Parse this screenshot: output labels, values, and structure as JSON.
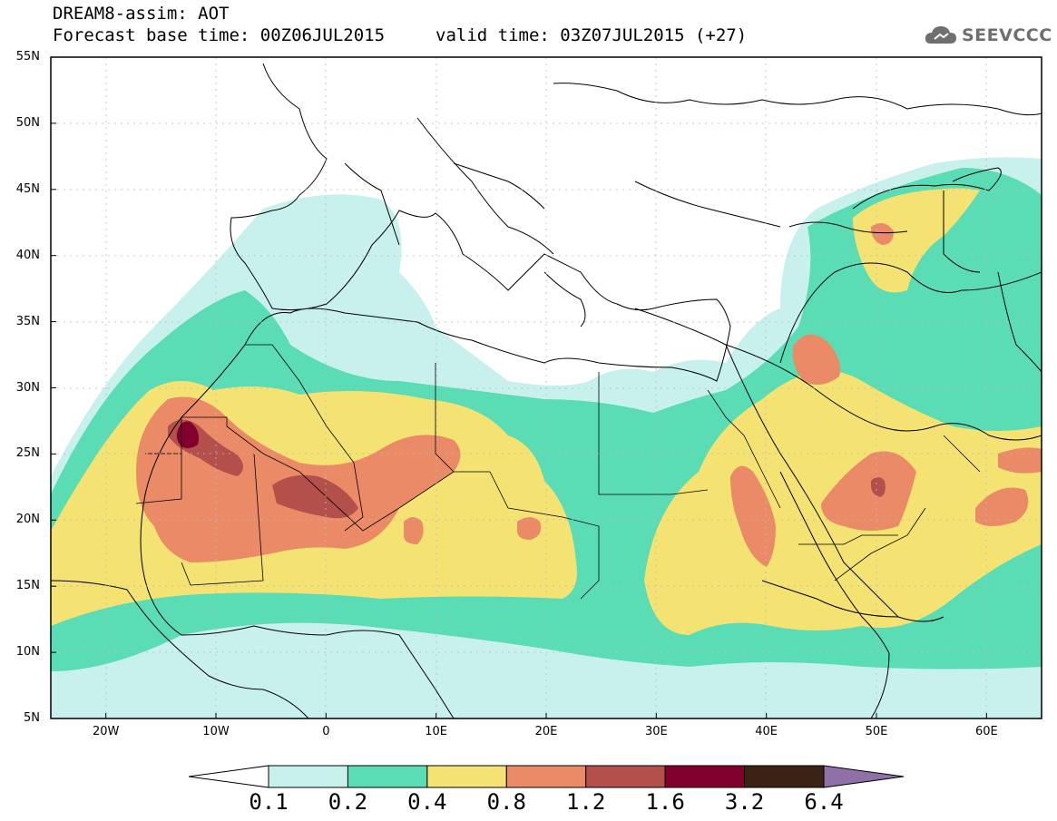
{
  "header": {
    "title_line1": "DREAM8-assim: AOT",
    "title_line2": "Forecast base time: 00Z06JUL2015",
    "valid_time": "valid time: 03Z07JUL2015 (+27)",
    "logo_text": "SEEVCCC"
  },
  "map": {
    "lat_range": [
      5,
      55
    ],
    "lon_range": [
      -25,
      65
    ],
    "lat_ticks": [
      {
        "lat": 55,
        "label": "55N"
      },
      {
        "lat": 50,
        "label": "50N"
      },
      {
        "lat": 45,
        "label": "45N"
      },
      {
        "lat": 40,
        "label": "40N"
      },
      {
        "lat": 35,
        "label": "35N"
      },
      {
        "lat": 30,
        "label": "30N"
      },
      {
        "lat": 25,
        "label": "25N"
      },
      {
        "lat": 20,
        "label": "20N"
      },
      {
        "lat": 15,
        "label": "15N"
      },
      {
        "lat": 10,
        "label": "10N"
      },
      {
        "lat": 5,
        "label": "5N"
      }
    ],
    "lon_ticks": [
      {
        "lon": -20,
        "label": "20W"
      },
      {
        "lon": -10,
        "label": "10W"
      },
      {
        "lon": 0,
        "label": "0"
      },
      {
        "lon": 10,
        "label": "10E"
      },
      {
        "lon": 20,
        "label": "20E"
      },
      {
        "lon": 30,
        "label": "30E"
      },
      {
        "lon": 40,
        "label": "40E"
      },
      {
        "lon": 50,
        "label": "50E"
      },
      {
        "lon": 60,
        "label": "60E"
      }
    ],
    "field": "AOT",
    "max_region": "Western Sahara / southern Morocco (AOT > 1.6)"
  },
  "colorbar": {
    "levels": [
      "0.1",
      "0.2",
      "0.4",
      "0.8",
      "1.2",
      "1.6",
      "3.2",
      "6.4"
    ],
    "colors": [
      "#c8f0ec",
      "#5adcb4",
      "#f4e272",
      "#ea8a66",
      "#b4504c",
      "#82002e",
      "#3c2214"
    ],
    "under_color": "#ffffff",
    "over_color": "#9070a8"
  },
  "colors": {
    "c1": "#c8f0ec",
    "c2": "#5adcb4",
    "c3": "#f4e272",
    "c4": "#ea8a66",
    "c5": "#b4504c",
    "c6": "#82002e",
    "c7": "#3c2214",
    "c8": "#9070a8"
  }
}
